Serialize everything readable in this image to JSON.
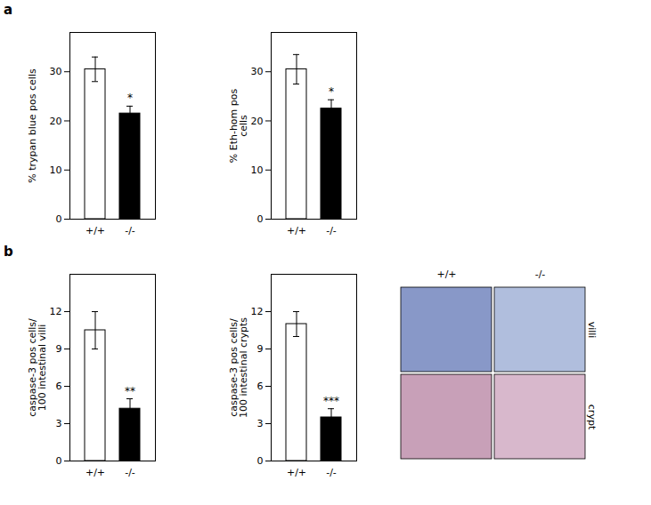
{
  "chart_data": [
    {
      "type": "bar",
      "title": "a",
      "categories": [
        "+/+",
        "-/-"
      ],
      "values": [
        30.5,
        21.5
      ],
      "errors": [
        2.5,
        1.5
      ],
      "colors": [
        "white",
        "black"
      ],
      "ylabel": "% trypan blue pos cells",
      "ylim": [
        0,
        38
      ],
      "yticks": [
        0,
        10,
        20,
        30
      ],
      "annotations": [
        {
          "category": "-/-",
          "text": "*"
        }
      ]
    },
    {
      "type": "bar",
      "categories": [
        "+/+",
        "-/-"
      ],
      "values": [
        30.5,
        22.5
      ],
      "errors": [
        3.0,
        1.8
      ],
      "colors": [
        "white",
        "black"
      ],
      "ylabel": "% Eth-hom pos\ncells",
      "ylim": [
        0,
        38
      ],
      "yticks": [
        0,
        10,
        20,
        30
      ],
      "annotations": [
        {
          "category": "-/-",
          "text": "*"
        }
      ]
    },
    {
      "type": "bar",
      "title": "b",
      "categories": [
        "+/+",
        "-/-"
      ],
      "values": [
        10.5,
        4.2
      ],
      "errors": [
        1.5,
        0.8
      ],
      "colors": [
        "white",
        "black"
      ],
      "ylabel": "caspase-3 pos cells/\n100 intestinal villi",
      "ylim": [
        0,
        15
      ],
      "yticks": [
        0,
        3,
        6,
        9,
        12
      ],
      "annotations": [
        {
          "category": "-/-",
          "text": "**"
        }
      ]
    },
    {
      "type": "bar",
      "categories": [
        "+/+",
        "-/-"
      ],
      "values": [
        11.0,
        3.5
      ],
      "errors": [
        1.0,
        0.7
      ],
      "colors": [
        "white",
        "black"
      ],
      "ylabel": "caspase-3 pos cells/\n100 intestinal crypts",
      "ylim": [
        0,
        15
      ],
      "yticks": [
        0,
        3,
        6,
        9,
        12
      ],
      "annotations": [
        {
          "category": "-/-",
          "text": "***"
        }
      ]
    },
    {
      "type": "image_grid",
      "categories": [
        "+/+",
        "-/-"
      ],
      "series": [
        {
          "name": "villi",
          "colors": [
            "#8898c8",
            "#b0bedd"
          ]
        },
        {
          "name": "crypt",
          "colors": [
            "#c8a0b8",
            "#d8b8cc"
          ]
        }
      ]
    }
  ]
}
